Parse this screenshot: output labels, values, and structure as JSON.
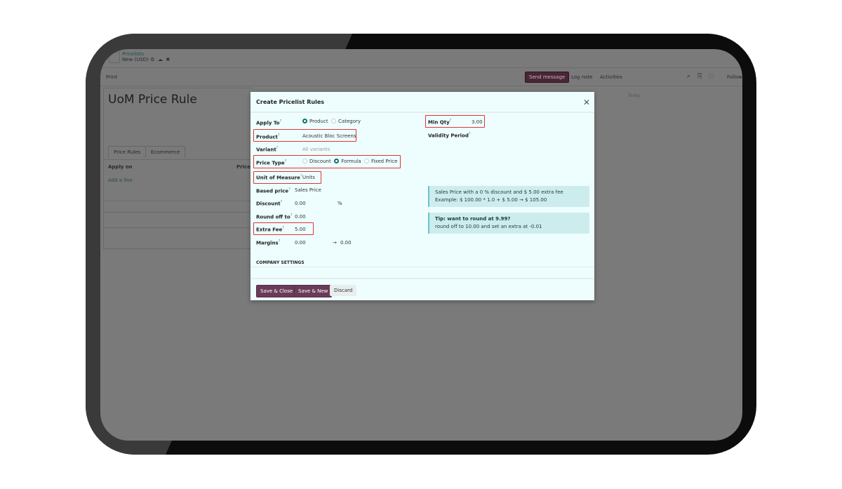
{
  "app": {
    "breadcrumb": "Pricelists",
    "record": "New (USD)",
    "print": "Print"
  },
  "chatter": {
    "send_message": "Send message",
    "log_note": "Log note",
    "activities": "Activities",
    "follow": "Follow",
    "today": "Today"
  },
  "form": {
    "title": "UoM Price Rule",
    "tabs": [
      "Price Rules",
      "Ecommerce"
    ],
    "col_apply_on": "Apply on",
    "col_price": "Price",
    "add_line": "Add a line"
  },
  "modal": {
    "title": "Create Pricelist Rules",
    "apply_to": {
      "label": "Apply To",
      "options": [
        "Product",
        "Category"
      ],
      "selected": "Product"
    },
    "product": {
      "label": "Product",
      "value": "Acoustic Bloc Screens"
    },
    "variant": {
      "label": "Variant",
      "placeholder": "All variants"
    },
    "price_type": {
      "label": "Price Type",
      "options": [
        "Discount",
        "Formula",
        "Fixed Price"
      ],
      "selected": "Formula"
    },
    "uom": {
      "label": "Unit of Measure",
      "value": "Units"
    },
    "based_price": {
      "label": "Based price",
      "value": "Sales Price"
    },
    "discount": {
      "label": "Discount",
      "value": "0.00",
      "unit": "%"
    },
    "round_off": {
      "label": "Round off to",
      "value": "0.00"
    },
    "extra_fee": {
      "label": "Extra Fee",
      "value": "5.00"
    },
    "margins": {
      "label": "Margins",
      "min": "0.00",
      "arrow": "→",
      "max": "0.00"
    },
    "min_qty": {
      "label": "Min Qty",
      "value": "3.00"
    },
    "validity": {
      "label": "Validity Period"
    },
    "info1": {
      "line1": "Sales Price with a 0 % discount and $ 5.00 extra fee",
      "line2": "Example: $ 100.00 * 1.0 + $ 5.00 → $ 105.00"
    },
    "info2": {
      "line1": "Tip: want to round at 9.99?",
      "line2": "round off to 10.00 and set an extra at -0.01"
    },
    "company_settings": "COMPANY SETTINGS",
    "buttons": {
      "save_close": "Save & Close",
      "save_new": "Save & New",
      "discard": "Discard"
    }
  },
  "colors": {
    "primary": "#6b3a59",
    "highlight": "#e03535",
    "info": "#cdeced",
    "modal_bg": "#eefefe"
  }
}
